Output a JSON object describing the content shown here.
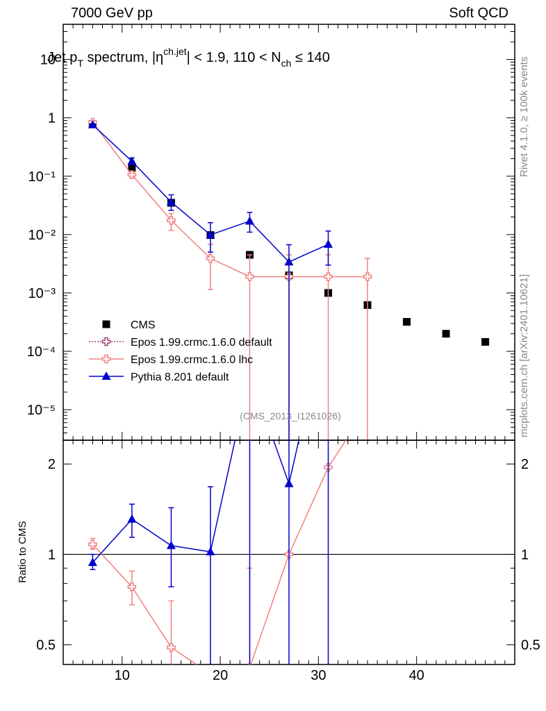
{
  "header": {
    "left": "7000 GeV pp",
    "right": "Soft QCD"
  },
  "side_labels": {
    "rivet": "Rivet 4.1.0, ≥ 100k events",
    "mcplots": "mcplots.cern.ch [arXiv:2401.10621]"
  },
  "title_parts": {
    "a": "Jet p",
    "a_sub": "T",
    "b": " spectrum, |η",
    "b_sup": "ch.jet",
    "c": "| < 1.9, 110 < N",
    "c_sub": "ch",
    "d": " ≤ 140"
  },
  "analysis_id": "(CMS_2013_I1261026)",
  "chart_data": {
    "type": "scatter",
    "title": "Jet pT spectrum, |eta ch.jet| < 1.9, 110 < Nch <= 140",
    "xlim": [
      4,
      50
    ],
    "main": {
      "yscale": "log",
      "ylim": [
        3e-06,
        40
      ],
      "yticks": [
        {
          "value": 10,
          "label": "10"
        },
        {
          "value": 1,
          "label": "1"
        },
        {
          "value": 0.1,
          "label": "10⁻¹"
        },
        {
          "value": 0.01,
          "label": "10⁻²"
        },
        {
          "value": 0.001,
          "label": "10⁻³"
        },
        {
          "value": 0.0001,
          "label": "10⁻⁴"
        },
        {
          "value": 1e-05,
          "label": "10⁻⁵"
        }
      ]
    },
    "ratio": {
      "ylabel": "Ratio to CMS",
      "yscale": "log",
      "ylim": [
        0.43,
        2.4
      ],
      "reference": 1,
      "yticks": [
        {
          "value": 0.5,
          "label": "0.5"
        },
        {
          "value": 1,
          "label": "1"
        },
        {
          "value": 2,
          "label": "2"
        }
      ]
    },
    "xticks": [
      10,
      20,
      30,
      40
    ],
    "series": [
      {
        "name": "CMS",
        "color": "#000000",
        "marker": "square",
        "x": [
          7,
          11,
          15,
          19,
          23,
          27,
          31,
          35,
          39,
          43,
          47
        ],
        "y": [
          0.78,
          0.14,
          0.035,
          0.0098,
          0.0045,
          0.002,
          0.001,
          0.00062,
          0.00032,
          0.0002,
          0.000145
        ]
      },
      {
        "name": "Epos 1.99.crmc.1.6.0 default",
        "color": "#a0406f",
        "marker": "open-cross",
        "line": "dotted",
        "x": [],
        "y": []
      },
      {
        "name": "Epos 1.99.crmc.1.6.0 lhc",
        "color": "#f08080",
        "marker": "open-cross",
        "line": "solid",
        "x": [
          7,
          11,
          15,
          19,
          23,
          27,
          31,
          35
        ],
        "y": [
          0.84,
          0.106,
          0.0175,
          0.0039,
          0.0019,
          0.0019,
          0.0019,
          0.0019
        ],
        "yerr_lo": [
          0.81,
          0.095,
          0.0118,
          0.00115,
          0.0,
          0.0,
          0.0,
          0.0
        ],
        "yerr_hi": [
          0.87,
          0.118,
          0.023,
          0.0068,
          0.0045,
          0.0045,
          0.0045,
          0.0039
        ],
        "ratio": [
          1.08,
          0.78,
          0.49,
          0.4,
          0.42,
          1.0,
          1.95,
          3.1
        ],
        "ratio_lo": [
          1.04,
          0.68,
          0.3,
          0.3,
          0.3,
          0.3,
          0.3,
          0.3
        ],
        "ratio_hi": [
          1.13,
          0.88,
          0.7,
          0.3,
          0.9,
          0.3,
          0.3,
          0.3
        ]
      },
      {
        "name": "Pythia 8.201 default",
        "color": "#0000cc",
        "marker": "triangle",
        "line": "solid",
        "x": [
          7,
          11,
          15,
          19,
          23,
          27,
          31
        ],
        "y": [
          0.76,
          0.18,
          0.036,
          0.0099,
          0.017,
          0.0034,
          0.0068
        ],
        "yerr_lo": [
          0.73,
          0.158,
          0.026,
          0.005,
          0.011,
          0.0,
          0.003
        ],
        "yerr_hi": [
          0.79,
          0.205,
          0.048,
          0.016,
          0.024,
          0.0067,
          0.0115
        ],
        "ratio": [
          0.94,
          1.31,
          1.07,
          1.02,
          4.0,
          1.72,
          6.5
        ],
        "ratio_lo": [
          0.89,
          1.14,
          0.78,
          0.4,
          0.3,
          0.3,
          0.3
        ],
        "ratio_hi": [
          1.0,
          1.47,
          1.43,
          1.68,
          3.0,
          3.0,
          3.0
        ]
      }
    ]
  }
}
